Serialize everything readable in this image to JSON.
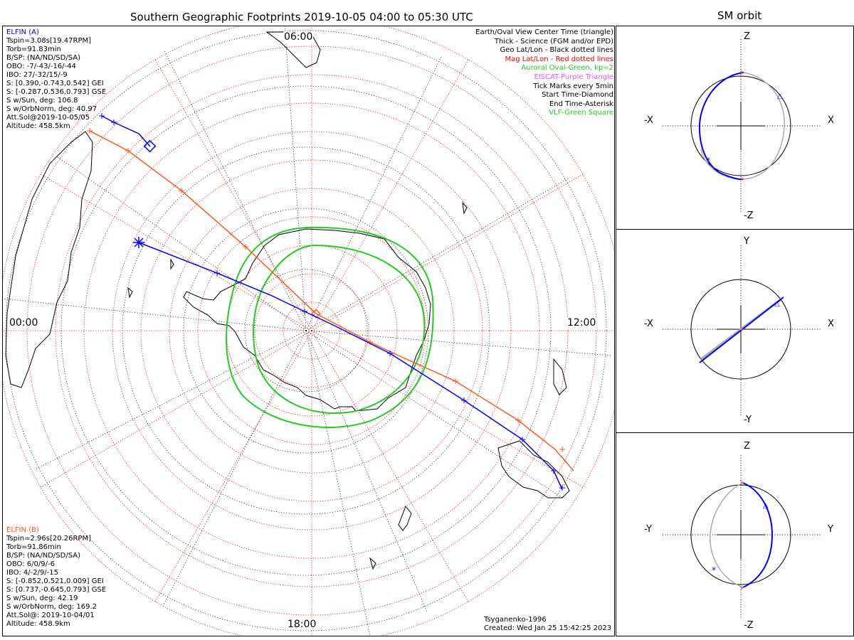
{
  "main_title": "Southern Geographic Footprints 2019-10-05 04:00 to 05:30 UTC",
  "side_title": "SM orbit",
  "elfin_a": {
    "name": "ELFIN (A)",
    "lines": [
      "Tspin=3.08s[19.47RPM]",
      "Torb=91.83min",
      "B/SP: (NA/ND/SD/SA)",
      "OBO: -7/-43/-16/-44",
      "IBO: 27/-32/15/-9",
      "S: [0.390,-0.743,0.542] GEI",
      "S: [-0.287,0.536,0.793] GSE",
      "S w/Sun, deg: 106.8",
      "S w/OrbNorm, deg: 40.97",
      "Att.Sol@2019-10-05/05",
      "Altitude: 458.5km"
    ],
    "color": "#0000ff"
  },
  "elfin_b": {
    "name": "ELFIN (B)",
    "lines": [
      "Tspin=2.96s[20.26RPM]",
      "Torb=91.86min",
      "B/SP: (NA/ND/SD/SA)",
      "OBO: 6/0/9/-6",
      "IBO: 4/-2/9/-15",
      "S: [-0.852,0.521,0.009] GEI",
      "S: [0.737,-0.645,0.793] GSE",
      "S w/Sun, deg: 42.19",
      "S w/OrbNorm, deg: 169.2",
      "Att.Sol@: 2019-10-04/01",
      "Altitude: 458.9km"
    ],
    "color": "#ff5a1e"
  },
  "legend": [
    {
      "text": "Earth/Oval View Center Time (triangle)",
      "color": "#000000"
    },
    {
      "text": "Thick - Science (FGM and/or EPD)",
      "color": "#000000"
    },
    {
      "text": "Geo Lat/Lon - Black dotted lines",
      "color": "#000000"
    },
    {
      "text": "Mag Lat/Lon - Red dotted lines",
      "color": "#ff0000"
    },
    {
      "text": "Auroral Oval-Green, kp=2",
      "color": "#22cc22"
    },
    {
      "text": "EISCAT-Purple Triangle",
      "color": "#ee55ee"
    },
    {
      "text": "Tick Marks every 5min",
      "color": "#000000"
    },
    {
      "text": "Start Time-Diamond",
      "color": "#000000"
    },
    {
      "text": "End Time-Asterisk",
      "color": "#000000"
    },
    {
      "text": "VLF-Green Square",
      "color": "#22cc22"
    }
  ],
  "clock_labels": {
    "top": "06:00",
    "left": "00:00",
    "right": "12:00",
    "bottom": "18:00"
  },
  "footer": {
    "model": "Tsyganenko-1996",
    "created": "Created: Wed Jan 25 15:42:25 2023"
  },
  "sm_panels": [
    {
      "left": "-X",
      "right": "X",
      "top": "Z",
      "bottom": "-Z"
    },
    {
      "left": "-X",
      "right": "X",
      "top": "Y",
      "bottom": "-Y"
    },
    {
      "left": "-Y",
      "right": "Y",
      "top": "Z",
      "bottom": "-Z"
    }
  ],
  "colors": {
    "elfin_a": "#0000ff",
    "elfin_b": "#ff5a1e",
    "auroral_oval": "#22cc22",
    "mag_grid": "#ff0000",
    "geo_grid": "#000000",
    "sm_trace": "#aaaaaa"
  }
}
